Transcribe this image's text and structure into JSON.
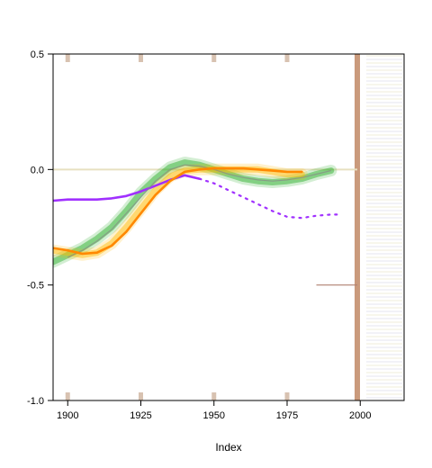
{
  "chart_data": {
    "type": "line",
    "xlabel": "Index",
    "ylabel": "",
    "xlim": [
      1895,
      2015
    ],
    "ylim": [
      -1.0,
      0.5
    ],
    "x_ticks": [
      1900,
      1925,
      1950,
      1975,
      2000
    ],
    "y_ticks": [
      -1.0,
      -0.5,
      0.0,
      0.5
    ],
    "x_tick_labels": [
      "1900",
      "1925",
      "1950",
      "1975",
      "2000"
    ],
    "y_tick_labels": [
      "-1.0",
      "-0.5",
      "0.0",
      "0.5"
    ],
    "grid": false,
    "legend": "none",
    "reference_line": {
      "y": 0.0,
      "color": "#e8e0c0"
    },
    "vertical_band": {
      "x": 1999,
      "color": "#b87850"
    },
    "series": [
      {
        "color": "#22aa22",
        "style": "wide-band",
        "x": [
          1895,
          1900,
          1905,
          1910,
          1915,
          1920,
          1925,
          1930,
          1935,
          1940,
          1945,
          1950,
          1955,
          1960,
          1965,
          1970,
          1975,
          1980,
          1985,
          1990
        ],
        "y": [
          -0.4,
          -0.37,
          -0.34,
          -0.3,
          -0.25,
          -0.18,
          -0.1,
          -0.04,
          0.01,
          0.03,
          0.02,
          0.0,
          -0.02,
          -0.04,
          -0.05,
          -0.055,
          -0.05,
          -0.04,
          -0.02,
          -0.005
        ]
      },
      {
        "color": "#ffbb00",
        "style": "wide-band",
        "x": [
          1895,
          1900,
          1905,
          1910,
          1915,
          1920,
          1925,
          1930,
          1935,
          1940,
          1945,
          1950,
          1955,
          1960,
          1965,
          1970,
          1975,
          1980
        ],
        "y": [
          -0.35,
          -0.36,
          -0.37,
          -0.36,
          -0.32,
          -0.25,
          -0.17,
          -0.09,
          -0.03,
          -0.005,
          0.0,
          0.0,
          0.0,
          0.0,
          0.0,
          -0.01,
          -0.02,
          -0.02
        ]
      },
      {
        "color": "#a030ff",
        "style": "solid",
        "x": [
          1895,
          1900,
          1905,
          1910,
          1915,
          1920,
          1925,
          1930,
          1935,
          1940,
          1945
        ],
        "y": [
          -0.135,
          -0.13,
          -0.13,
          -0.13,
          -0.125,
          -0.115,
          -0.095,
          -0.07,
          -0.045,
          -0.025,
          -0.04
        ]
      },
      {
        "color": "#a030ff",
        "style": "dotted",
        "x": [
          1945,
          1950,
          1955,
          1960,
          1965,
          1970,
          1975,
          1980,
          1985,
          1990,
          1993
        ],
        "y": [
          -0.04,
          -0.06,
          -0.09,
          -0.12,
          -0.15,
          -0.18,
          -0.205,
          -0.21,
          -0.2,
          -0.195,
          -0.195
        ]
      },
      {
        "color": "#888888",
        "style": "thin",
        "x": [
          1900,
          1905,
          1910,
          1915,
          1920,
          1925,
          1930,
          1935,
          1940,
          1945,
          1950,
          1955,
          1960,
          1965,
          1970,
          1975,
          1980,
          1985,
          1990
        ],
        "y": [
          -0.38,
          -0.35,
          -0.31,
          -0.26,
          -0.19,
          -0.12,
          -0.05,
          0.0,
          0.02,
          0.015,
          0.0,
          -0.02,
          -0.035,
          -0.045,
          -0.05,
          -0.045,
          -0.035,
          -0.02,
          -0.005
        ]
      },
      {
        "color": "#ff8800",
        "style": "solid",
        "x": [
          1895,
          1900,
          1905,
          1910,
          1915,
          1920,
          1925,
          1930,
          1935,
          1940,
          1945,
          1950,
          1955,
          1960,
          1965,
          1970,
          1975,
          1980
        ],
        "y": [
          -0.34,
          -0.35,
          -0.365,
          -0.36,
          -0.33,
          -0.27,
          -0.19,
          -0.11,
          -0.05,
          -0.01,
          0.0,
          0.005,
          0.005,
          0.005,
          0.0,
          -0.005,
          -0.01,
          -0.01
        ]
      }
    ]
  }
}
